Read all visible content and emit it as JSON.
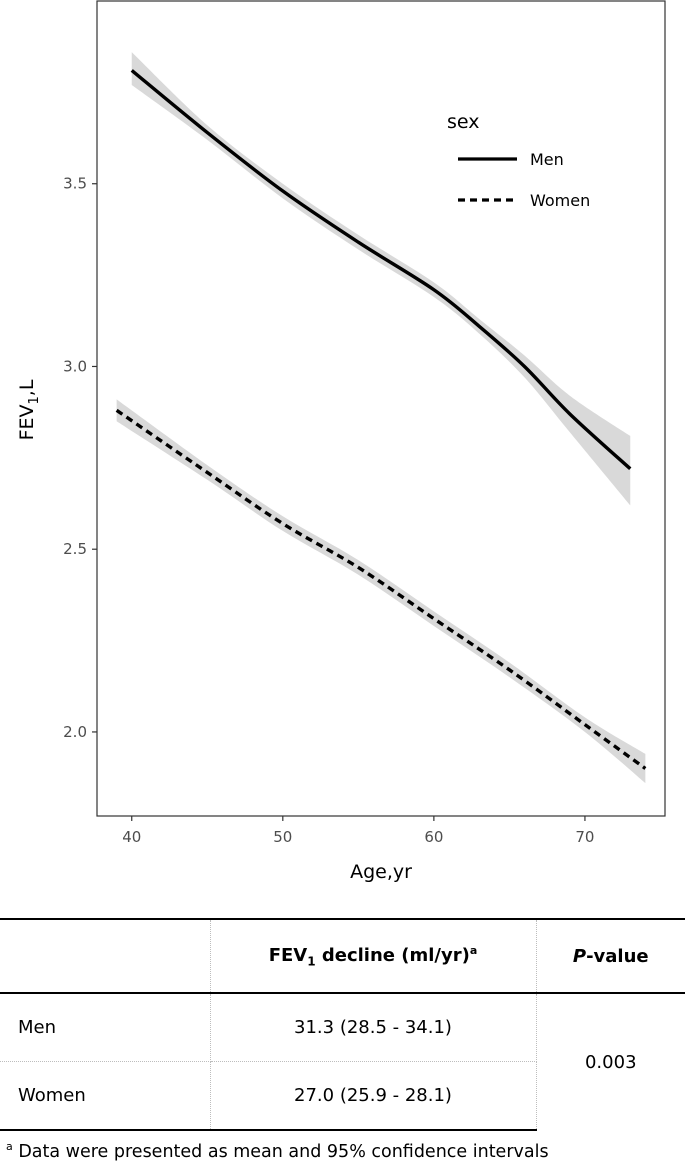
{
  "chart_data": {
    "type": "line",
    "xlabel": "Age,yr",
    "ylabel_main": "FEV",
    "ylabel_sub": "1",
    "ylabel_tail": ",L",
    "xlim": [
      37.7,
      75.3
    ],
    "ylim": [
      1.77,
      4.0
    ],
    "xticks": [
      40,
      50,
      60,
      70
    ],
    "yticks": [
      2.0,
      2.5,
      3.0,
      3.5
    ],
    "ytick_labels": [
      "2.0",
      "2.5",
      "3.0",
      "3.5"
    ],
    "grid": false,
    "legend_title": "sex",
    "legend_position": "top-right",
    "series": [
      {
        "name": "Men",
        "line_style": "solid",
        "x": [
          40,
          45,
          50,
          55,
          60,
          63,
          66,
          69,
          73
        ],
        "y": [
          3.81,
          3.64,
          3.48,
          3.34,
          3.21,
          3.11,
          3.0,
          2.87,
          2.72
        ],
        "ci_lower": [
          3.77,
          3.62,
          3.46,
          3.32,
          3.19,
          3.09,
          2.97,
          2.82,
          2.62
        ],
        "ci_upper": [
          3.86,
          3.66,
          3.5,
          3.36,
          3.23,
          3.13,
          3.03,
          2.92,
          2.81
        ]
      },
      {
        "name": "Women",
        "line_style": "dashed",
        "x": [
          39,
          45,
          50,
          55,
          60,
          65,
          70,
          74
        ],
        "y": [
          2.88,
          2.71,
          2.57,
          2.45,
          2.31,
          2.17,
          2.02,
          1.9
        ],
        "ci_lower": [
          2.85,
          2.69,
          2.55,
          2.43,
          2.29,
          2.15,
          2.0,
          1.86
        ],
        "ci_upper": [
          2.91,
          2.73,
          2.59,
          2.47,
          2.33,
          2.19,
          2.04,
          1.94
        ]
      }
    ]
  },
  "table": {
    "header": {
      "col1": "",
      "col2_main": "FEV",
      "col2_sub": "1",
      "col2_tail": " decline (ml/yr)",
      "col2_sup": "a",
      "col3_italic": "P",
      "col3_tail": "-value"
    },
    "rows": [
      {
        "label": "Men",
        "value": "31.3 (28.5 - 34.1)"
      },
      {
        "label": "Women",
        "value": "27.0 (25.9 - 28.1)"
      }
    ],
    "p_value": "0.003"
  },
  "footnote": {
    "sup": "a",
    "text": " Data were presented as mean and 95% confidence intervals"
  }
}
